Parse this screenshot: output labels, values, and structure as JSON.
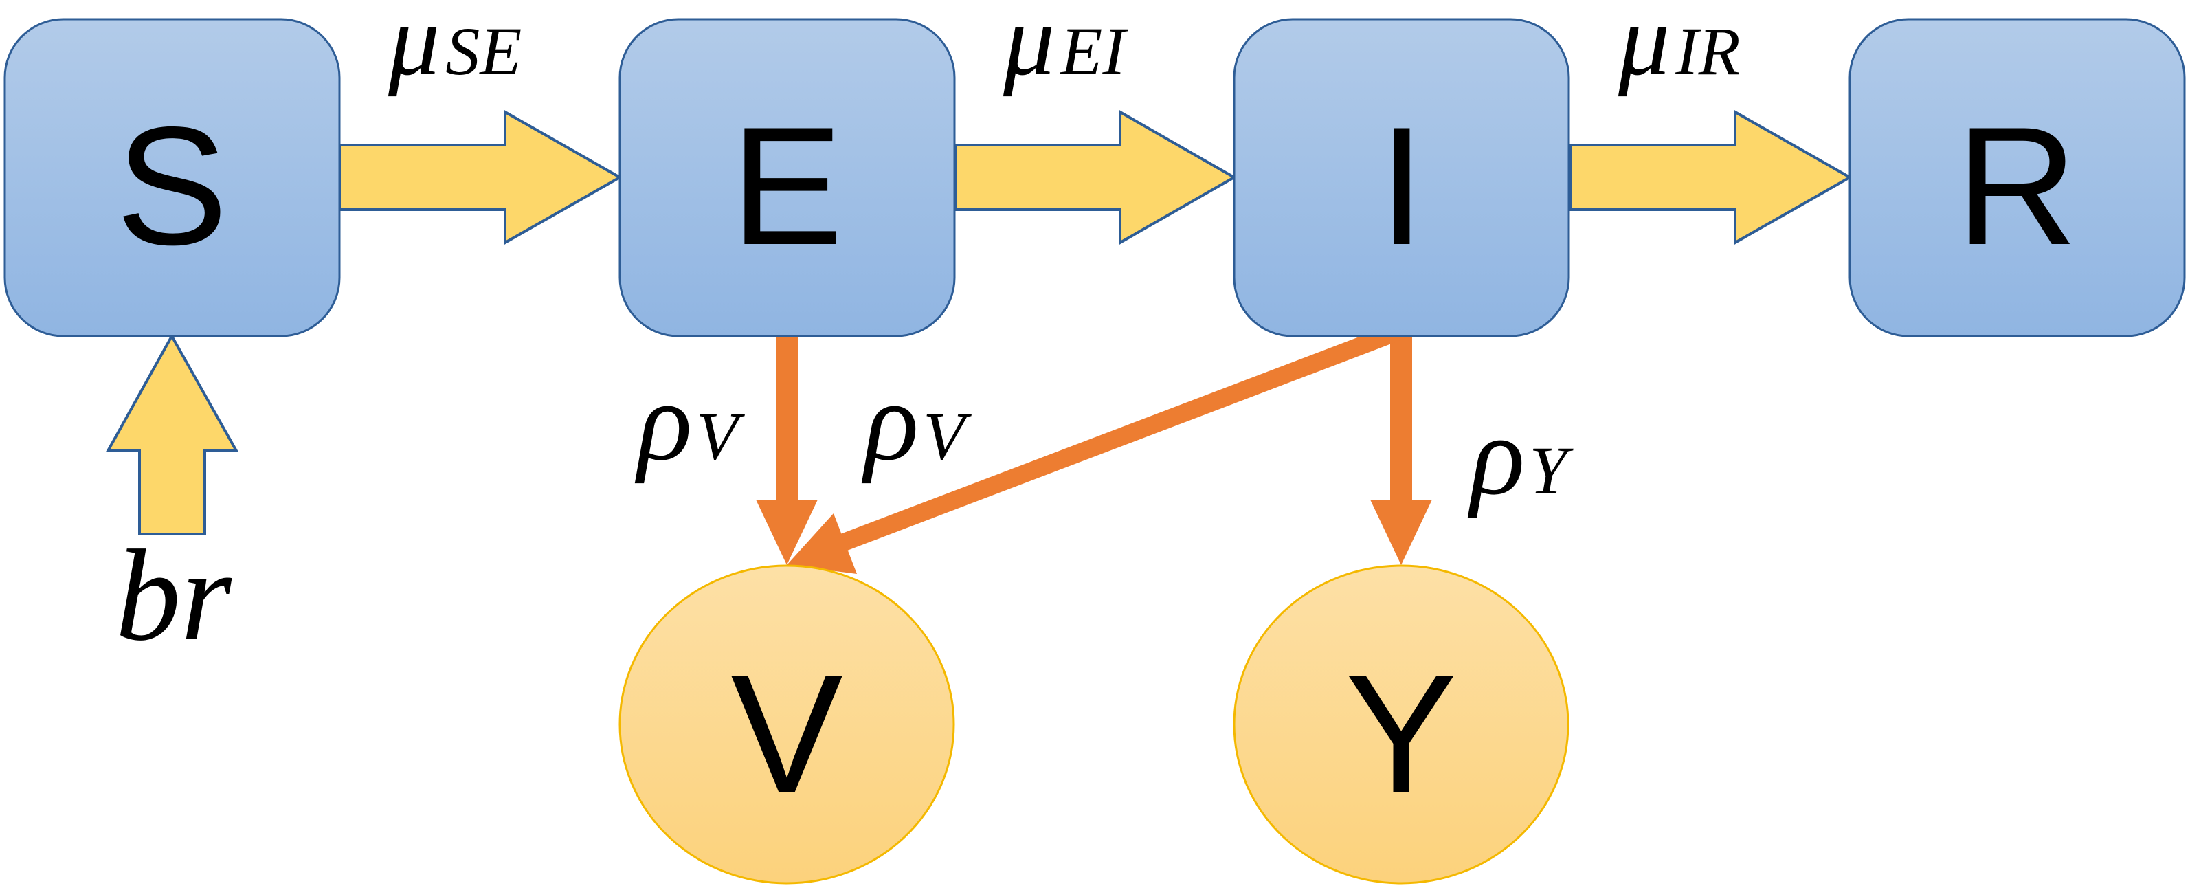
{
  "nodes": {
    "s": {
      "label": "S"
    },
    "e": {
      "label": "E"
    },
    "i": {
      "label": "I"
    },
    "r": {
      "label": "R"
    },
    "v": {
      "label": "V"
    },
    "y": {
      "label": "Y"
    }
  },
  "edges": {
    "s_e": {
      "symbol": "μ",
      "sub": "SE"
    },
    "e_i": {
      "symbol": "μ",
      "sub": "EI"
    },
    "i_r": {
      "symbol": "μ",
      "sub": "IR"
    },
    "birth": {
      "label": "br"
    },
    "e_v": {
      "symbol": "ρ",
      "sub": "V"
    },
    "i_v": {
      "symbol": "ρ",
      "sub": "V"
    },
    "i_y": {
      "symbol": "ρ",
      "sub": "Y"
    }
  },
  "colors": {
    "box_top": "#b2cbe9",
    "box_bottom": "#90b5e2",
    "box_stroke": "#2e5d96",
    "circle_top": "#fde0a6",
    "circle_bottom": "#fcd27c",
    "circle_stroke": "#f4b800",
    "flow_arrow_fill": "#fdd76a",
    "flow_arrow_stroke": "#2e5d96",
    "orange_arrow": "#ed7d31"
  }
}
